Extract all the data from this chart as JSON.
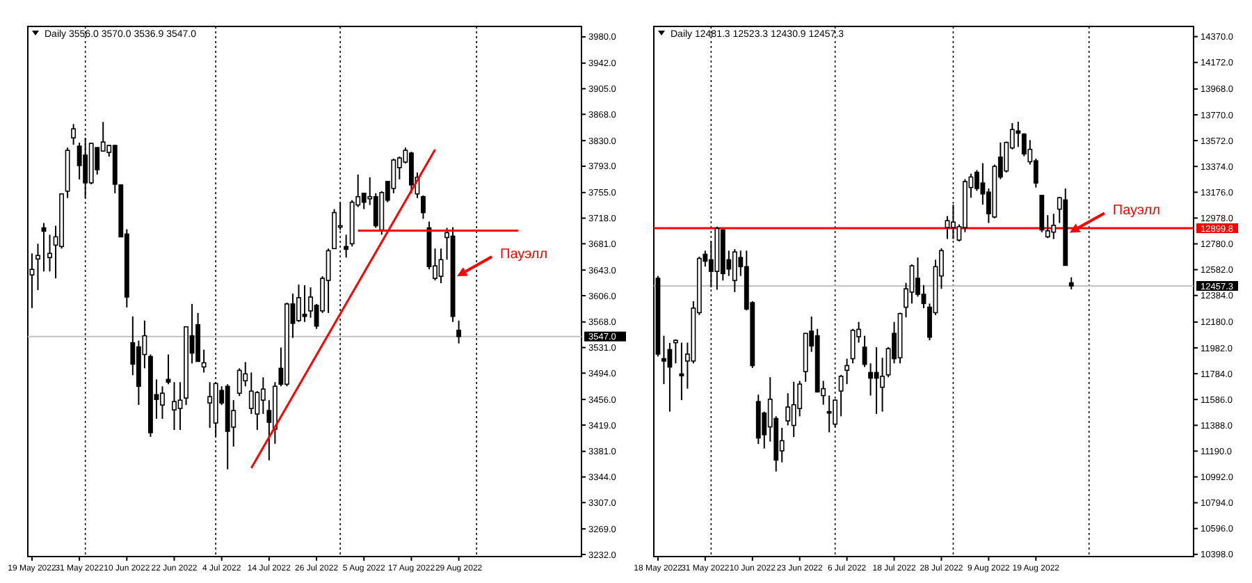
{
  "chart_data": [
    {
      "type": "candlestick",
      "title": "Daily 3556.0 3570.0 3536.9 3547.0",
      "categories": [
        "19 May 2022",
        null,
        null,
        null,
        null,
        null,
        null,
        null,
        "31 May 2022",
        null,
        null,
        null,
        null,
        null,
        null,
        null,
        "10 Jun 2022",
        null,
        null,
        null,
        null,
        null,
        null,
        null,
        "22 Jun 2022",
        null,
        null,
        null,
        null,
        null,
        null,
        null,
        "4 Jul 2022",
        null,
        null,
        null,
        null,
        null,
        null,
        null,
        "14 Jul 2022",
        null,
        null,
        null,
        null,
        null,
        null,
        null,
        "26 Jul 2022",
        null,
        null,
        null,
        null,
        null,
        null,
        null,
        "5 Aug 2022",
        null,
        null,
        null,
        null,
        null,
        null,
        null,
        "17 Aug 2022",
        null,
        null,
        null,
        null,
        null,
        null,
        null,
        "29 Aug 2022",
        null,
        null,
        null,
        null,
        null,
        null,
        null,
        null,
        null,
        null,
        null,
        null,
        null,
        null,
        null,
        null,
        null,
        null,
        null,
        null
      ],
      "ohlc": [
        [
          3636,
          3667,
          3588,
          3644
        ],
        [
          3659,
          3681,
          3614,
          3664
        ],
        [
          3704,
          3711,
          3641,
          3699
        ],
        [
          3661,
          3694,
          3641,
          3667
        ],
        [
          3679,
          3707,
          3631,
          3691
        ],
        [
          3677,
          3754,
          3674,
          3753
        ],
        [
          3757,
          3820,
          3747,
          3816
        ],
        [
          3834,
          3854,
          3824,
          3847
        ],
        [
          3822,
          3827,
          3774,
          3794
        ],
        [
          3809,
          3834,
          3747,
          3769
        ],
        [
          3769,
          3827,
          3767,
          3826
        ],
        [
          3820,
          3820,
          3781,
          3788
        ],
        [
          3815,
          3857,
          3814,
          3828
        ],
        [
          3813,
          3824,
          3807,
          3823
        ],
        [
          3823,
          3824,
          3754,
          3767
        ],
        [
          3766,
          3767,
          3691,
          3691
        ],
        [
          3695,
          3702,
          3589,
          3604
        ],
        [
          3538,
          3576,
          3491,
          3507
        ],
        [
          3532,
          3541,
          3448,
          3475
        ],
        [
          3521,
          3570,
          3501,
          3548
        ],
        [
          3518,
          3521,
          3402,
          3408
        ],
        [
          3463,
          3485,
          3428,
          3456
        ],
        [
          3448,
          3475,
          3428,
          3465
        ],
        [
          3485,
          3521,
          3478,
          3481
        ],
        [
          3441,
          3481,
          3412,
          3453
        ],
        [
          3443,
          3481,
          3412,
          3455
        ],
        [
          3458,
          3561,
          3448,
          3561
        ],
        [
          3548,
          3594,
          3508,
          3523
        ],
        [
          3564,
          3581,
          3511,
          3511
        ],
        [
          3503,
          3528,
          3495,
          3509
        ],
        [
          3451,
          3481,
          3415,
          3460
        ],
        [
          3422,
          3481,
          3402,
          3479
        ],
        [
          3469,
          3475,
          3448,
          3451
        ],
        [
          3475,
          3478,
          3355,
          3410
        ],
        [
          3416,
          3455,
          3388,
          3440
        ],
        [
          3465,
          3501,
          3461,
          3498
        ],
        [
          3483,
          3510,
          3475,
          3493
        ],
        [
          3443,
          3495,
          3435,
          3468
        ],
        [
          3435,
          3468,
          3412,
          3466
        ],
        [
          3455,
          3488,
          3435,
          3471
        ],
        [
          3440,
          3455,
          3368,
          3423
        ],
        [
          3413,
          3481,
          3392,
          3475
        ],
        [
          3501,
          3531,
          3475,
          3478
        ],
        [
          3478,
          3596,
          3475,
          3594
        ],
        [
          3594,
          3609,
          3545,
          3566
        ],
        [
          3570,
          3622,
          3568,
          3603
        ],
        [
          3579,
          3621,
          3568,
          3576
        ],
        [
          3584,
          3618,
          3574,
          3604
        ],
        [
          3592,
          3594,
          3558,
          3562
        ],
        [
          3584,
          3634,
          3581,
          3631
        ],
        [
          3628,
          3674,
          3581,
          3671
        ],
        [
          3674,
          3731,
          3674,
          3726
        ],
        [
          3705,
          3741,
          3701,
          3707
        ],
        [
          3677,
          3694,
          3661,
          3673
        ],
        [
          3681,
          3744,
          3677,
          3741
        ],
        [
          3737,
          3781,
          3734,
          3749
        ],
        [
          3754,
          3754,
          3731,
          3741
        ],
        [
          3746,
          3777,
          3737,
          3749
        ],
        [
          3749,
          3754,
          3704,
          3707
        ],
        [
          3701,
          3757,
          3694,
          3755
        ],
        [
          3771,
          3771,
          3741,
          3744
        ],
        [
          3761,
          3804,
          3754,
          3802
        ],
        [
          3791,
          3807,
          3774,
          3805
        ],
        [
          3799,
          3820,
          3797,
          3816
        ],
        [
          3812,
          3814,
          3754,
          3766
        ],
        [
          3753,
          3784,
          3747,
          3777
        ],
        [
          3749,
          3751,
          3717,
          3726
        ],
        [
          3704,
          3713,
          3644,
          3648
        ],
        [
          3631,
          3674,
          3628,
          3649
        ],
        [
          3634,
          3674,
          3624,
          3658
        ],
        [
          3690,
          3704,
          3658,
          3697
        ],
        [
          3692,
          3705,
          3568,
          3576
        ],
        [
          3556.0,
          3570.0,
          3536.9,
          3547.0
        ],
        null,
        null,
        null,
        null,
        null,
        null,
        null,
        null,
        null,
        null,
        null,
        null,
        null,
        null,
        null,
        null,
        null,
        null,
        null,
        null
      ],
      "series": [
        {
          "type": "line",
          "color": "#ff0000",
          "values": [
            null,
            null,
            null,
            null,
            null,
            null,
            null,
            null,
            null,
            null,
            null,
            null,
            null,
            null,
            null,
            null,
            null,
            null,
            null,
            null,
            null,
            null,
            null,
            null,
            null,
            null,
            null,
            null,
            null,
            null,
            null,
            null,
            null,
            null,
            null,
            null,
            null,
            3357,
            null,
            null,
            null,
            null,
            null,
            null,
            null,
            null,
            null,
            null,
            null,
            null,
            null,
            null,
            null,
            null,
            null,
            null,
            null,
            null,
            null,
            null,
            null,
            null,
            null,
            null,
            null,
            null,
            null,
            null,
            3817,
            null,
            null,
            null,
            null,
            null,
            null,
            null,
            null,
            null,
            null,
            null,
            null,
            null,
            null,
            null,
            null,
            null,
            null,
            null,
            null,
            null,
            null,
            null,
            null
          ]
        },
        {
          "type": "line",
          "color": "#ff0000",
          "values": [
            null,
            null,
            null,
            null,
            null,
            null,
            null,
            null,
            null,
            null,
            null,
            null,
            null,
            null,
            null,
            null,
            null,
            null,
            null,
            null,
            null,
            null,
            null,
            null,
            null,
            null,
            null,
            null,
            null,
            null,
            null,
            null,
            null,
            null,
            null,
            null,
            null,
            null,
            null,
            null,
            null,
            null,
            null,
            null,
            null,
            null,
            null,
            null,
            null,
            null,
            null,
            null,
            null,
            null,
            null,
            3700,
            null,
            null,
            null,
            null,
            null,
            null,
            null,
            null,
            null,
            null,
            null,
            null,
            null,
            null,
            null,
            null,
            null,
            null,
            null,
            null,
            null,
            null,
            null,
            null,
            null,
            null,
            3700,
            null,
            null,
            null,
            null,
            null,
            null,
            null,
            null,
            null,
            null
          ]
        }
      ],
      "ylim": [
        3229,
        3995
      ],
      "grid": "x",
      "yticks": [
        {
          "value": 3980,
          "label": "3980.0"
        },
        {
          "value": 3942,
          "label": "3942.0"
        },
        {
          "value": 3905,
          "label": "3905.0"
        },
        {
          "value": 3868,
          "label": "3868.0"
        },
        {
          "value": 3830,
          "label": "3830.0"
        },
        {
          "value": 3793,
          "label": "3793.0"
        },
        {
          "value": 3755,
          "label": "3755.0"
        },
        {
          "value": 3718,
          "label": "3718.0"
        },
        {
          "value": 3681,
          "label": "3681.0"
        },
        {
          "value": 3643,
          "label": "3643.0"
        },
        {
          "value": 3606,
          "label": "3606.0"
        },
        {
          "value": 3568,
          "label": "3568.0"
        },
        {
          "value": 3531,
          "label": "3531.0"
        },
        {
          "value": 3494,
          "label": "3494.0"
        },
        {
          "value": 3456,
          "label": "3456.0"
        },
        {
          "value": 3419,
          "label": "3419.0"
        },
        {
          "value": 3381,
          "label": "3381.0"
        },
        {
          "value": 3344,
          "label": "3344.0"
        },
        {
          "value": 3307,
          "label": "3307.0"
        },
        {
          "value": 3269,
          "label": "3269.0"
        },
        {
          "value": 3232,
          "label": "3232.0"
        }
      ],
      "ref_lines": [
        {
          "axis": "y",
          "value": 3547,
          "label": "3547.0",
          "color": "#c0c0c0",
          "line_style": "solid"
        }
      ],
      "annotations": [
        "Пауэлл"
      ]
    },
    {
      "type": "candlestick",
      "title": "Daily 12481.3 12523.3 12430.9 12457.3",
      "categories": [
        "18 May 2022",
        null,
        null,
        null,
        null,
        null,
        null,
        null,
        "31 May 2022",
        null,
        null,
        null,
        null,
        null,
        null,
        null,
        "10 Jun 2022",
        null,
        null,
        null,
        null,
        null,
        null,
        null,
        "23 Jun 2022",
        null,
        null,
        null,
        null,
        null,
        null,
        null,
        "6 Jul 2022",
        null,
        null,
        null,
        null,
        null,
        null,
        null,
        "18 Jul 2022",
        null,
        null,
        null,
        null,
        null,
        null,
        null,
        "28 Jul 2022",
        null,
        null,
        null,
        null,
        null,
        null,
        null,
        "9 Aug 2022",
        null,
        null,
        null,
        null,
        null,
        null,
        null,
        "19 Aug 2022",
        null,
        null,
        null,
        null,
        null,
        null,
        null,
        null,
        null,
        null,
        null,
        null,
        null,
        null,
        null,
        null,
        null,
        null,
        null,
        null,
        null,
        null,
        null,
        null,
        null,
        null
      ],
      "ohlc": [
        [
          12516,
          12534,
          11916,
          11934
        ],
        [
          11899,
          12075,
          11704,
          11881
        ],
        [
          11969,
          12020,
          11493,
          11835
        ],
        [
          12022,
          12047,
          11863,
          12040
        ],
        [
          11782,
          12022,
          11581,
          11768
        ],
        [
          11881,
          12022,
          11669,
          11934
        ],
        [
          11881,
          12340,
          11863,
          12287
        ],
        [
          12252,
          12682,
          12234,
          12668
        ],
        [
          12700,
          12728,
          12605,
          12647
        ],
        [
          12658,
          12799,
          12446,
          12569
        ],
        [
          12569,
          12912,
          12428,
          12898
        ],
        [
          12887,
          12887,
          12499,
          12552
        ],
        [
          12658,
          12728,
          12534,
          12587
        ],
        [
          12499,
          12739,
          12410,
          12718
        ],
        [
          12675,
          12728,
          12534,
          12605
        ],
        [
          12605,
          12728,
          12269,
          12280
        ],
        [
          12329,
          12340,
          11828,
          11846
        ],
        [
          11570,
          11623,
          11245,
          11291
        ],
        [
          11482,
          11493,
          11210,
          11316
        ],
        [
          11376,
          11757,
          11263,
          11588
        ],
        [
          11440,
          11457,
          11034,
          11122
        ],
        [
          11192,
          11369,
          11104,
          11270
        ],
        [
          11422,
          11634,
          11387,
          11528
        ],
        [
          11387,
          11722,
          11298,
          11546
        ],
        [
          11517,
          11729,
          11457,
          11704
        ],
        [
          11800,
          12093,
          11722,
          12093
        ],
        [
          12110,
          12223,
          11951,
          11997
        ],
        [
          12075,
          12128,
          11640,
          11644
        ],
        [
          11616,
          11729,
          11546,
          11669
        ],
        [
          11493,
          11616,
          11334,
          11482
        ],
        [
          11397,
          11588,
          11376,
          11581
        ],
        [
          11651,
          11775,
          11457,
          11764
        ],
        [
          11810,
          11899,
          11704,
          11846
        ],
        [
          11899,
          12128,
          11863,
          12117
        ],
        [
          12068,
          12181,
          12022,
          12124
        ],
        [
          11987,
          12075,
          11835,
          11856
        ],
        [
          11793,
          11863,
          11616,
          11750
        ],
        [
          11793,
          11987,
          11475,
          11750
        ],
        [
          11680,
          11906,
          11493,
          11764
        ],
        [
          11775,
          11987,
          11757,
          11976
        ],
        [
          12093,
          12181,
          11863,
          11899
        ],
        [
          11906,
          12252,
          11863,
          12245
        ],
        [
          12294,
          12481,
          12216,
          12435
        ],
        [
          12410,
          12622,
          12322,
          12612
        ],
        [
          12516,
          12675,
          12375,
          12393
        ],
        [
          12393,
          12464,
          12287,
          12322
        ],
        [
          12294,
          12322,
          12040,
          12064
        ],
        [
          12252,
          12658,
          12234,
          12605
        ],
        [
          12534,
          12746,
          12435,
          12728
        ],
        [
          12905,
          12993,
          12817,
          12958
        ],
        [
          12905,
          13081,
          12817,
          12947
        ],
        [
          12809,
          12929,
          12799,
          12912
        ],
        [
          12905,
          13276,
          12870,
          13258
        ],
        [
          13212,
          13318,
          13134,
          13293
        ],
        [
          13329,
          13346,
          13187,
          13205
        ],
        [
          13247,
          13399,
          13081,
          13163
        ],
        [
          13177,
          13205,
          12940,
          13011
        ],
        [
          12986,
          13388,
          12976,
          13374
        ],
        [
          13445,
          13558,
          13276,
          13293
        ],
        [
          13339,
          13565,
          13328,
          13558
        ],
        [
          13516,
          13706,
          13505,
          13657
        ],
        [
          13646,
          13717,
          13523,
          13629
        ],
        [
          13622,
          13629,
          13452,
          13470
        ],
        [
          13410,
          13576,
          13388,
          13505
        ],
        [
          13417,
          13434,
          13212,
          13247
        ],
        [
          13152,
          13152,
          12869,
          12887
        ],
        [
          12834,
          13000,
          12824,
          12880
        ],
        [
          12870,
          13011,
          12817,
          12922
        ],
        [
          13046,
          13141,
          12940,
          13134
        ],
        [
          13117,
          13205,
          12612,
          12615
        ],
        [
          12481.3,
          12523.3,
          12430.9,
          12457.3
        ],
        null,
        null,
        null,
        null,
        null,
        null,
        null,
        null,
        null,
        null,
        null,
        null,
        null,
        null,
        null,
        null,
        null,
        null,
        null,
        null
      ],
      "ylim": [
        10381,
        14448
      ],
      "grid": "x",
      "yticks": [
        {
          "value": 14370,
          "label": "14370.0"
        },
        {
          "value": 14172,
          "label": "14172.0"
        },
        {
          "value": 13968,
          "label": "13968.0"
        },
        {
          "value": 13770,
          "label": "13770.0"
        },
        {
          "value": 13572,
          "label": "13572.0"
        },
        {
          "value": 13374,
          "label": "13374.0"
        },
        {
          "value": 13176,
          "label": "13176.0"
        },
        {
          "value": 12978,
          "label": "12978.0"
        },
        {
          "value": 12780,
          "label": "12780.0"
        },
        {
          "value": 12582,
          "label": "12582.0"
        },
        {
          "value": 12384,
          "label": "12384.0"
        },
        {
          "value": 12180,
          "label": "12180.0"
        },
        {
          "value": 11982,
          "label": "11982.0"
        },
        {
          "value": 11784,
          "label": "11784.0"
        },
        {
          "value": 11586,
          "label": "11586.0"
        },
        {
          "value": 11388,
          "label": "11388.0"
        },
        {
          "value": 11190,
          "label": "11190.0"
        },
        {
          "value": 10992,
          "label": "10992.0"
        },
        {
          "value": 10794,
          "label": "10794.0"
        },
        {
          "value": 10596,
          "label": "10596.0"
        },
        {
          "value": 10398,
          "label": "10398.0"
        }
      ],
      "ref_lines": [
        {
          "axis": "y",
          "value": 12899.8,
          "label": "12899.8",
          "color": "#ff0000",
          "line_style": "solid"
        },
        {
          "axis": "y",
          "value": 12457.3,
          "label": "12457.3",
          "color": "#c0c0c0",
          "line_style": "solid"
        }
      ],
      "annotations": [
        "Пауэлл"
      ]
    }
  ]
}
